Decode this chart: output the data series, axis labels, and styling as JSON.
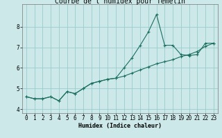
{
  "title": "Courbe de l'humidex pour Temelin",
  "xlabel": "Humidex (Indice chaleur)",
  "ylabel": "",
  "background_color": "#cce8e8",
  "grid_color": "#99cccc",
  "line_color": "#1a6e5e",
  "x_values": [
    0,
    1,
    2,
    3,
    4,
    5,
    6,
    7,
    8,
    9,
    10,
    11,
    12,
    13,
    14,
    15,
    16,
    17,
    18,
    19,
    20,
    21,
    22,
    23
  ],
  "line1_y": [
    4.6,
    4.5,
    4.5,
    4.6,
    4.4,
    4.85,
    4.75,
    5.0,
    5.25,
    5.35,
    5.45,
    5.5,
    6.0,
    6.5,
    7.1,
    7.75,
    8.6,
    7.1,
    7.1,
    6.65,
    6.6,
    6.65,
    7.2,
    7.2
  ],
  "line2_y": [
    4.6,
    4.5,
    4.5,
    4.6,
    4.4,
    4.85,
    4.75,
    5.0,
    5.25,
    5.35,
    5.45,
    5.5,
    5.6,
    5.75,
    5.9,
    6.05,
    6.2,
    6.3,
    6.4,
    6.55,
    6.65,
    6.8,
    7.05,
    7.2
  ],
  "xlim": [
    -0.5,
    23.5
  ],
  "ylim": [
    3.8,
    9.1
  ],
  "yticks": [
    4,
    5,
    6,
    7,
    8
  ],
  "xticks": [
    0,
    1,
    2,
    3,
    4,
    5,
    6,
    7,
    8,
    9,
    10,
    11,
    12,
    13,
    14,
    15,
    16,
    17,
    18,
    19,
    20,
    21,
    22,
    23
  ],
  "title_fontsize": 7,
  "axis_fontsize": 6,
  "tick_fontsize": 5.5
}
